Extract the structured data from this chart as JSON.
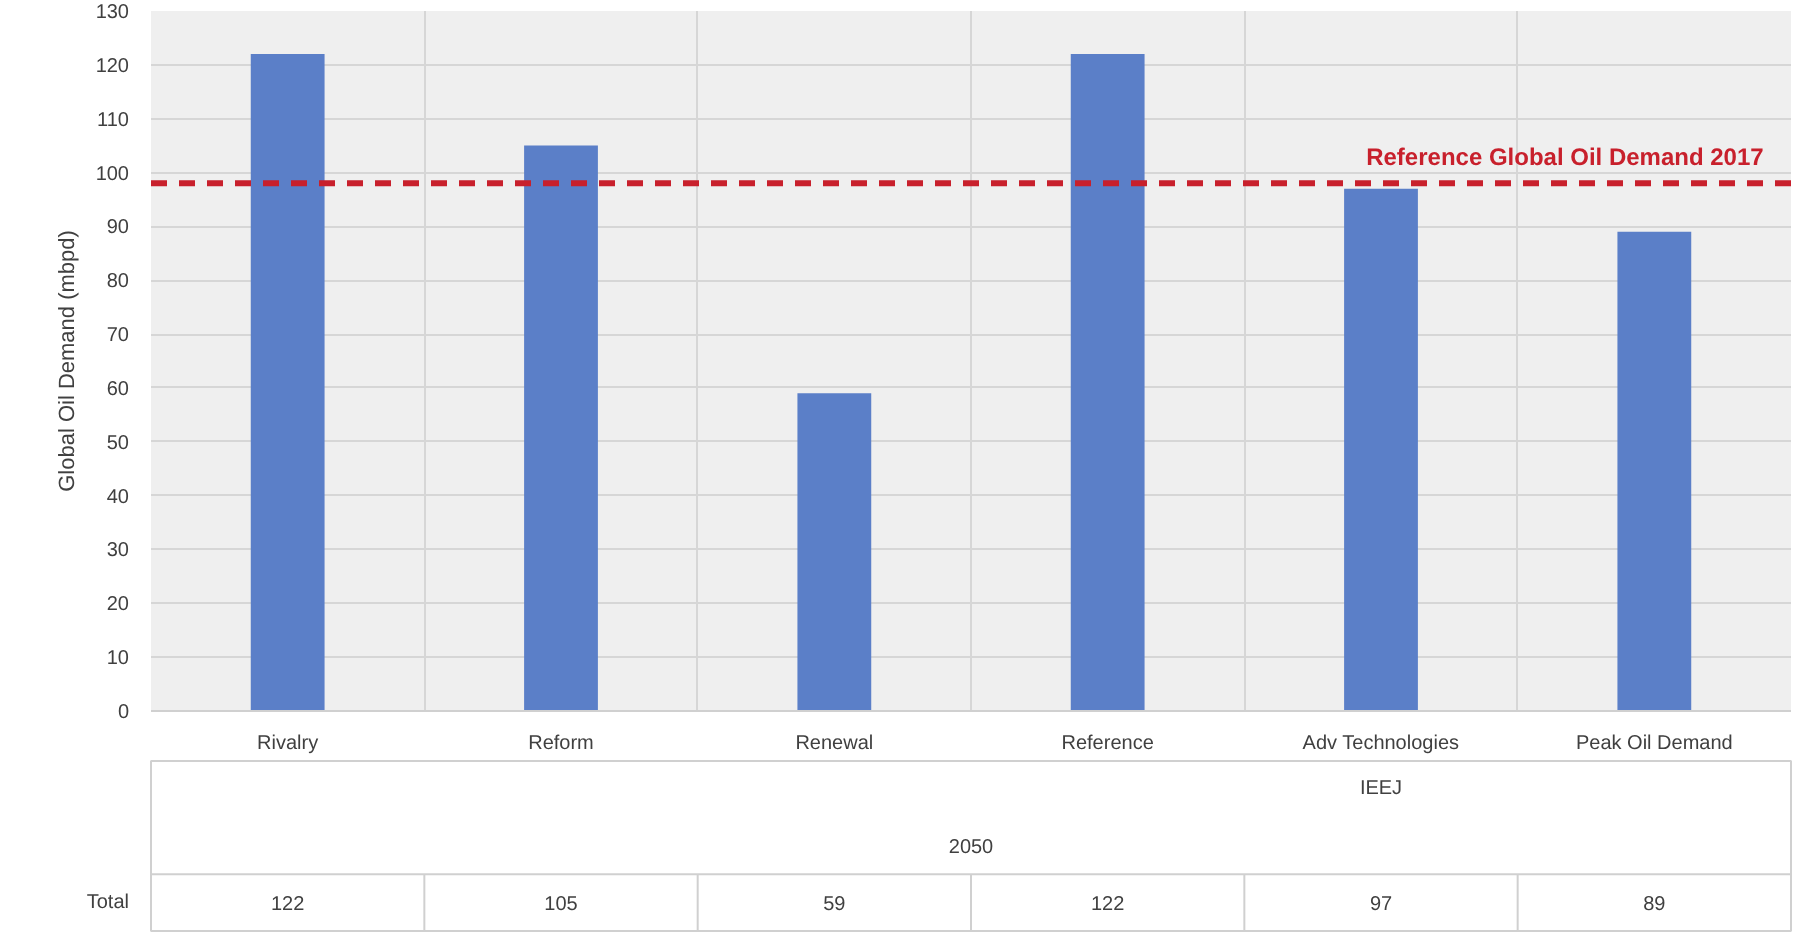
{
  "chart_data": {
    "type": "bar",
    "ylabel": "Global Oil Demand (mbpd)",
    "categories": [
      "Rivalry",
      "Reform",
      "Renewal",
      "Reference",
      "Adv Technologies",
      "Peak Oil Demand"
    ],
    "series": [
      {
        "color": "#5b7fc8",
        "values": [
          122,
          105,
          59,
          122,
          97,
          89
        ]
      }
    ],
    "ylim": [
      0,
      130
    ],
    "yticks": [
      0,
      10,
      20,
      30,
      40,
      50,
      60,
      70,
      80,
      90,
      100,
      110,
      120,
      130
    ],
    "grid": true,
    "data_labels": true,
    "ref_lines": [
      {
        "axis": "y",
        "value": 98,
        "label": "Reference Global Oil Demand 2017",
        "color": "#c8202c",
        "line_style": "dashed"
      }
    ],
    "annotations": [
      "IEEJ",
      "2050",
      "Total"
    ]
  }
}
